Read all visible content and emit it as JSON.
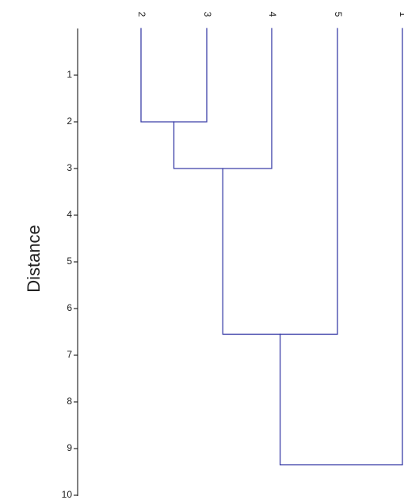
{
  "chart_data": {
    "type": "dendrogram",
    "title": "",
    "xlabel": "",
    "ylabel": "Distance",
    "y_axis_inverted": true,
    "ylim": [
      0,
      10
    ],
    "y_ticks": [
      1,
      2,
      3,
      4,
      5,
      6,
      7,
      8,
      9,
      10
    ],
    "leaves_in_order": [
      "2",
      "3",
      "4",
      "5",
      "1"
    ],
    "merges": [
      {
        "left": "2",
        "right": "3",
        "distance": 2.0
      },
      {
        "left": "2,3",
        "right": "4",
        "distance": 3.0
      },
      {
        "left": "2,3,4",
        "right": "5",
        "distance": 6.55
      },
      {
        "left": "2,3,4,5",
        "right": "1",
        "distance": 9.35
      }
    ],
    "line_color": "#3b3fa8",
    "grid": false
  }
}
